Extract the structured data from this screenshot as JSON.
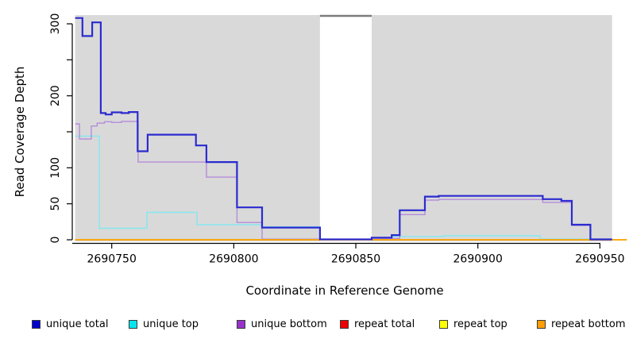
{
  "y_axis": {
    "label": "Read Coverage Depth",
    "ticks": [
      {
        "v": 0,
        "label": "0"
      },
      {
        "v": 50,
        "label": "50"
      },
      {
        "v": 100,
        "label": "100"
      },
      {
        "v": 150,
        "label": ""
      },
      {
        "v": 200,
        "label": "200"
      },
      {
        "v": 250,
        "label": ""
      },
      {
        "v": 300,
        "label": "300"
      }
    ]
  },
  "x_axis": {
    "label": "Coordinate in Reference Genome",
    "ticks": [
      {
        "c": 2690750,
        "label": "2690750"
      },
      {
        "c": 2690800,
        "label": "2690800"
      },
      {
        "c": 2690850,
        "label": "2690850"
      },
      {
        "c": 2690900,
        "label": "2690900"
      },
      {
        "c": 2690950,
        "label": "2690950"
      }
    ]
  },
  "legend": [
    {
      "label": "unique total",
      "swatch": "#0000CC"
    },
    {
      "label": "unique top",
      "swatch": "#00E5EE"
    },
    {
      "label": "unique bottom",
      "swatch": "#9932CC"
    },
    {
      "label": "repeat total",
      "swatch": "#EE0000"
    },
    {
      "label": "repeat top",
      "swatch": "#FFFF00"
    },
    {
      "label": "repeat bottom",
      "swatch": "#FF9E00"
    }
  ],
  "chart_data": {
    "type": "line",
    "subtype": "step-after-coverage",
    "title": "",
    "xlabel": "Coordinate in Reference Genome",
    "ylabel": "Read Coverage Depth",
    "x_range": [
      2690735,
      2690955
    ],
    "y_range": [
      0,
      312
    ],
    "grid": false,
    "legend_position": "bottom",
    "plot_background": "#D9D9D9",
    "gap": {
      "from": 2690835.3,
      "to": 2690856.5,
      "top_bar_color": "#7D7D7D"
    },
    "series": [
      {
        "name": "unique top",
        "color": "#84E7EF",
        "width": 1.4,
        "end": 2690955,
        "points": [
          [
            2690735,
            144
          ],
          [
            2690744.9,
            16
          ],
          [
            2690764.4,
            38
          ],
          [
            2690784.9,
            21
          ],
          [
            2690811.6,
            18
          ],
          [
            2690835.3,
            0.5
          ],
          [
            2690856.5,
            1.5
          ],
          [
            2690864.7,
            4.5
          ],
          [
            2690886,
            5.5
          ],
          [
            2690925.5,
            1
          ]
        ]
      },
      {
        "name": "unique bottom",
        "color": "#B48CDB",
        "width": 1.4,
        "end": 2690955,
        "points": [
          [
            2690735,
            161
          ],
          [
            2690736.8,
            140
          ],
          [
            2690741.6,
            158
          ],
          [
            2690744,
            162
          ],
          [
            2690747,
            164
          ],
          [
            2690750,
            163
          ],
          [
            2690754,
            164.5
          ],
          [
            2690760.8,
            108
          ],
          [
            2690788.8,
            87
          ],
          [
            2690801.3,
            24
          ],
          [
            2690811.6,
            0.9
          ],
          [
            2690856.5,
            1.8
          ],
          [
            2690868,
            35
          ],
          [
            2690878.3,
            55
          ],
          [
            2690884,
            56
          ],
          [
            2690926.6,
            52
          ],
          [
            2690938.5,
            20
          ],
          [
            2690946.1,
            0.4
          ]
        ]
      },
      {
        "name": "repeat total",
        "color": "#E05060",
        "width": 1.4,
        "end": 2690961,
        "points": [
          [
            2690735,
            0
          ]
        ]
      },
      {
        "name": "repeat top",
        "color": "#F2F200",
        "width": 1.4,
        "end": 2690961,
        "points": [
          [
            2690735,
            0
          ]
        ]
      },
      {
        "name": "repeat bottom",
        "color": "#FF9E00",
        "width": 1.5,
        "end": 2690961,
        "points": [
          [
            2690735,
            0
          ]
        ]
      },
      {
        "name": "unique total",
        "color": "#2B2BD0",
        "width": 2.2,
        "end": 2690955,
        "points": [
          [
            2690735,
            308
          ],
          [
            2690738,
            283
          ],
          [
            2690742,
            302
          ],
          [
            2690745.5,
            176
          ],
          [
            2690747.5,
            174
          ],
          [
            2690750,
            177
          ],
          [
            2690754,
            176
          ],
          [
            2690757,
            177.5
          ],
          [
            2690760.6,
            123
          ],
          [
            2690764.7,
            146
          ],
          [
            2690784.5,
            131
          ],
          [
            2690788.8,
            108
          ],
          [
            2690801.3,
            45
          ],
          [
            2690811.6,
            17
          ],
          [
            2690835.3,
            0.6
          ],
          [
            2690856.5,
            3
          ],
          [
            2690864.7,
            6.5
          ],
          [
            2690868,
            41
          ],
          [
            2690878.3,
            60
          ],
          [
            2690884,
            61
          ],
          [
            2690926.6,
            56.5
          ],
          [
            2690934.2,
            54
          ],
          [
            2690938.5,
            21
          ],
          [
            2690946.1,
            0.6
          ]
        ]
      }
    ]
  }
}
